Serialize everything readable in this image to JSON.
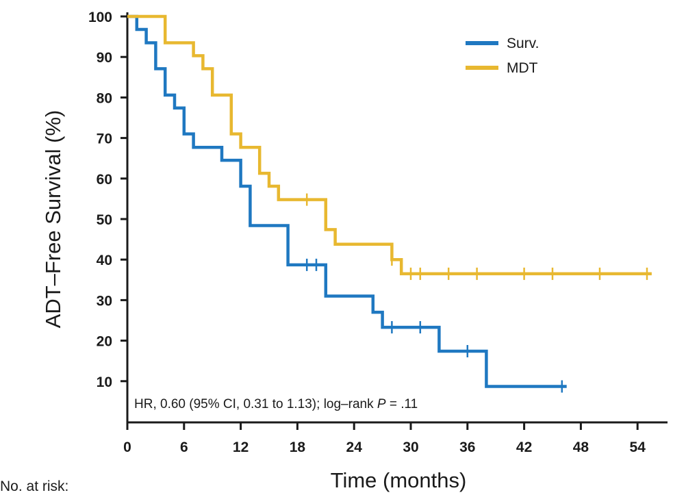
{
  "chart_data": {
    "type": "line",
    "subtype": "kaplan-meier step",
    "xlabel": "Time (months)",
    "ylabel": "ADT–Free Survival (%)",
    "xlim": [
      0,
      57
    ],
    "ylim": [
      0,
      100
    ],
    "x_ticks": [
      "0",
      "6",
      "12",
      "18",
      "24",
      "30",
      "36",
      "42",
      "48",
      "54"
    ],
    "y_ticks": [
      "10",
      "20",
      "30",
      "40",
      "50",
      "60",
      "70",
      "80",
      "90",
      "100"
    ],
    "legend_position": "top-right",
    "annotation": {
      "prefix": "HR, 0.60 (95% CI, 0.31 to 1.13); log–rank ",
      "p_symbol": "P",
      "suffix": " = .11"
    },
    "risk_table_label": "No. at risk:",
    "series": [
      {
        "name": "Surv.",
        "color": "#1f78c1",
        "steps": [
          [
            0,
            100
          ],
          [
            1,
            96.8
          ],
          [
            2,
            93.5
          ],
          [
            3,
            87.1
          ],
          [
            4,
            80.6
          ],
          [
            5,
            77.4
          ],
          [
            6,
            71.0
          ],
          [
            7,
            67.7
          ],
          [
            10,
            64.5
          ],
          [
            12,
            58.1
          ],
          [
            13,
            48.4
          ],
          [
            17,
            38.7
          ],
          [
            21,
            31.0
          ],
          [
            26,
            27.0
          ],
          [
            27,
            23.3
          ],
          [
            33,
            17.4
          ],
          [
            38,
            8.7
          ],
          [
            46.5,
            8.7
          ]
        ],
        "censored": [
          19,
          20,
          28,
          31,
          36,
          46
        ]
      },
      {
        "name": "MDT",
        "color": "#e8b830",
        "steps": [
          [
            0,
            100
          ],
          [
            4,
            93.5
          ],
          [
            7,
            90.3
          ],
          [
            8,
            87.1
          ],
          [
            9,
            80.6
          ],
          [
            11,
            71.0
          ],
          [
            12,
            67.7
          ],
          [
            14,
            61.3
          ],
          [
            15,
            58.1
          ],
          [
            16,
            54.8
          ],
          [
            21,
            47.4
          ],
          [
            22,
            43.8
          ],
          [
            28,
            40.0
          ],
          [
            29,
            36.5
          ],
          [
            55.5,
            36.5
          ]
        ],
        "censored": [
          19,
          28,
          30,
          31,
          34,
          37,
          42,
          45,
          50,
          55
        ]
      }
    ]
  }
}
